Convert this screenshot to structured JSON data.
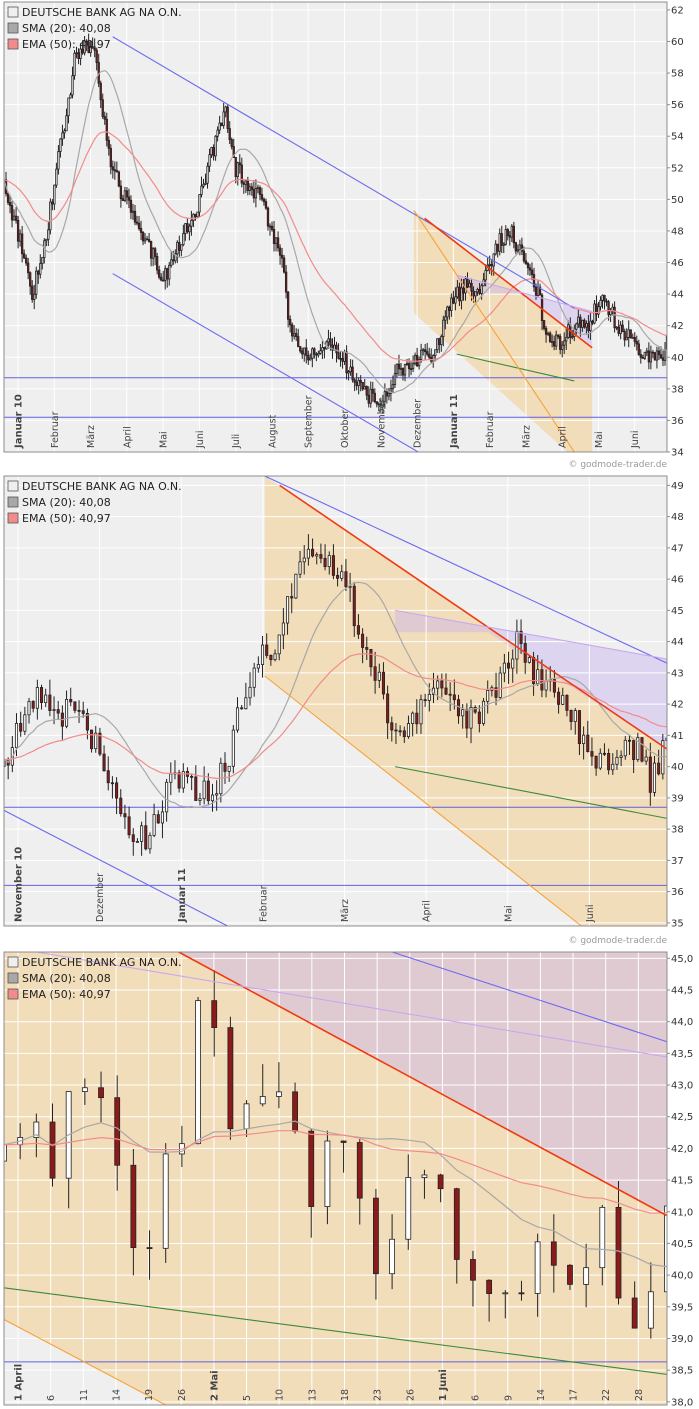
{
  "credit": "© godmode-trader.de",
  "colors": {
    "plot_bg": "#efefef",
    "grid": "#ffffff",
    "frame": "#8c8c8c",
    "candle_up": "#ffffff",
    "candle_down": "#8b1a1a",
    "wick": "#222222",
    "sma": "#a8a8a8",
    "ema": "#f28b8b",
    "trend_blue": "#6b6bf0",
    "trend_red": "#f03a10",
    "trend_green": "#3a8a3a",
    "trend_orange": "#f6a23a",
    "trend_violet": "#c8a8f0",
    "support_line": "#6060e0",
    "zone_orange": "#f7c87a",
    "zone_violet": "#c8b4f0"
  },
  "legend": {
    "title": "DEUTSCHE BANK AG NA O.N.",
    "sma": "SMA (20): 40,08",
    "ema": "EMA (50): 40,97"
  },
  "chart_data": [
    {
      "type": "candlestick",
      "title": "DEUTSCHE BANK AG NA O.N.",
      "legend": [
        "DEUTSCHE BANK AG NA O.N.",
        "SMA (20): 40,08",
        "EMA (50): 40,97"
      ],
      "x_tick_labels": [
        "Januar 10",
        "Februar",
        "März",
        "April",
        "Mai",
        "Juni",
        "Juli",
        "August",
        "September",
        "Oktober",
        "November",
        "Dezember",
        "Januar 11",
        "Februar",
        "März",
        "April",
        "Mai",
        "Juni"
      ],
      "y_tick_labels": [
        "34",
        "36",
        "38",
        "40",
        "42",
        "44",
        "46",
        "48",
        "50",
        "52",
        "54",
        "56",
        "58",
        "60",
        "62"
      ],
      "ylim": [
        34,
        62.5
      ],
      "horizontal_lines": [
        38.7,
        36.2
      ],
      "close_path": [
        [
          0,
          51
        ],
        [
          0.05,
          47
        ],
        [
          0.08,
          44
        ],
        [
          0.12,
          48
        ],
        [
          0.2,
          59
        ],
        [
          0.25,
          60
        ],
        [
          0.3,
          52
        ],
        [
          0.38,
          48
        ],
        [
          0.45,
          45
        ],
        [
          0.55,
          50
        ],
        [
          0.62,
          56
        ],
        [
          0.65,
          52
        ],
        [
          0.72,
          50
        ],
        [
          0.78,
          46
        ],
        [
          0.8,
          42
        ],
        [
          0.85,
          40
        ],
        [
          0.9,
          41
        ],
        [
          0.95,
          40
        ],
        [
          1.0,
          38
        ],
        [
          1.05,
          37
        ],
        [
          1.1,
          39
        ],
        [
          1.15,
          40
        ],
        [
          1.2,
          40
        ],
        [
          1.25,
          43
        ],
        [
          1.3,
          45
        ],
        [
          1.33,
          44
        ],
        [
          1.38,
          47
        ],
        [
          1.42,
          48
        ],
        [
          1.46,
          46
        ],
        [
          1.5,
          44
        ],
        [
          1.52,
          41
        ],
        [
          1.56,
          41
        ],
        [
          1.6,
          42
        ],
        [
          1.64,
          42
        ],
        [
          1.68,
          44
        ],
        [
          1.72,
          42
        ],
        [
          1.76,
          41
        ],
        [
          1.8,
          40
        ],
        [
          1.84,
          40
        ],
        [
          1.86,
          40.8
        ]
      ],
      "trendlines": [
        {
          "color": "trend_blue",
          "from": [
            0.305,
            60.3
          ],
          "to": [
            1.6,
            43.1
          ]
        },
        {
          "color": "trend_blue",
          "from": [
            0.305,
            45.3
          ],
          "to": [
            1.2,
            33.5
          ]
        },
        {
          "color": "trend_red",
          "from": [
            1.18,
            48.8
          ],
          "to": [
            1.65,
            40.6
          ]
        },
        {
          "color": "trend_green",
          "from": [
            1.27,
            40.2
          ],
          "to": [
            1.6,
            38.5
          ]
        },
        {
          "color": "trend_orange",
          "from": [
            1.15,
            49.3
          ],
          "to": [
            1.6,
            34.0
          ]
        },
        {
          "color": "trend_violet",
          "from": [
            1.27,
            45.2
          ],
          "to": [
            1.65,
            42.9
          ]
        }
      ],
      "zones": [
        {
          "color": "zone_orange",
          "poly": [
            [
              1.15,
              49.3
            ],
            [
              1.65,
              40.6
            ],
            [
              1.65,
              34.0
            ],
            [
              1.58,
              34.0
            ],
            [
              1.15,
              42.8
            ]
          ]
        },
        {
          "color": "zone_violet",
          "poly": [
            [
              1.27,
              45.2
            ],
            [
              1.65,
              42.9
            ],
            [
              1.65,
              40.6
            ],
            [
              1.45,
              44.0
            ],
            [
              1.27,
              44.0
            ]
          ]
        }
      ]
    },
    {
      "type": "candlestick",
      "title": "DEUTSCHE BANK AG NA O.N.",
      "legend": [
        "DEUTSCHE BANK AG NA O.N.",
        "SMA (20): 40,08",
        "EMA (50): 40,97"
      ],
      "x_tick_labels": [
        "November 10",
        "Dezember",
        "Januar 11",
        "Februar",
        "März",
        "April",
        "Mai",
        "Juni"
      ],
      "y_tick_labels": [
        "35",
        "36",
        "37",
        "38",
        "39",
        "40",
        "41",
        "42",
        "43",
        "44",
        "45",
        "46",
        "47",
        "48",
        "49"
      ],
      "ylim": [
        34.9,
        49.3
      ],
      "horizontal_lines": [
        38.7,
        36.2
      ],
      "close_path": [
        [
          0,
          40
        ],
        [
          0.05,
          41.5
        ],
        [
          0.1,
          42.3
        ],
        [
          0.15,
          41.5
        ],
        [
          0.2,
          42
        ],
        [
          0.25,
          40.5
        ],
        [
          0.3,
          39.5
        ],
        [
          0.35,
          37.5
        ],
        [
          0.4,
          38
        ],
        [
          0.45,
          39.5
        ],
        [
          0.5,
          39.3
        ],
        [
          0.55,
          39.1
        ],
        [
          0.6,
          40.2
        ],
        [
          0.65,
          42.5
        ],
        [
          0.7,
          44
        ],
        [
          0.73,
          43.5
        ],
        [
          0.76,
          45
        ],
        [
          0.8,
          47
        ],
        [
          0.84,
          46.5
        ],
        [
          0.88,
          46.5
        ],
        [
          0.92,
          45.8
        ],
        [
          0.95,
          44.5
        ],
        [
          1.0,
          43
        ],
        [
          1.05,
          41
        ],
        [
          1.1,
          41.3
        ],
        [
          1.15,
          42.5
        ],
        [
          1.2,
          42
        ],
        [
          1.25,
          41.5
        ],
        [
          1.3,
          42
        ],
        [
          1.35,
          43
        ],
        [
          1.38,
          44.2
        ],
        [
          1.42,
          43
        ],
        [
          1.46,
          42.8
        ],
        [
          1.5,
          42
        ],
        [
          1.55,
          41
        ],
        [
          1.6,
          40
        ],
        [
          1.65,
          40.5
        ],
        [
          1.7,
          40.7
        ],
        [
          1.74,
          39.5
        ],
        [
          1.78,
          40.8
        ]
      ],
      "trendlines": [
        {
          "color": "trend_blue",
          "from": [
            0.7,
            49.3
          ],
          "to": [
            1.8,
            43.2
          ]
        },
        {
          "color": "trend_blue",
          "from": [
            0.0,
            38.6
          ],
          "to": [
            0.6,
            34.9
          ]
        },
        {
          "color": "trend_red",
          "from": [
            0.74,
            49.0
          ],
          "to": [
            1.8,
            40.4
          ]
        },
        {
          "color": "trend_green",
          "from": [
            1.05,
            40.0
          ],
          "to": [
            1.8,
            38.3
          ]
        },
        {
          "color": "trend_orange",
          "from": [
            0.7,
            42.9
          ],
          "to": [
            1.55,
            34.9
          ]
        },
        {
          "color": "trend_violet",
          "from": [
            1.05,
            45.0
          ],
          "to": [
            1.8,
            43.4
          ]
        }
      ],
      "zones": [
        {
          "color": "zone_orange",
          "poly": [
            [
              0.7,
              49.3
            ],
            [
              1.8,
              40.4
            ],
            [
              1.8,
              34.9
            ],
            [
              1.55,
              34.9
            ],
            [
              0.7,
              42.9
            ]
          ]
        },
        {
          "color": "zone_violet",
          "poly": [
            [
              1.05,
              45.0
            ],
            [
              1.8,
              43.4
            ],
            [
              1.8,
              40.4
            ],
            [
              1.3,
              44.3
            ],
            [
              1.05,
              44.3
            ]
          ]
        }
      ]
    },
    {
      "type": "candlestick",
      "title": "DEUTSCHE BANK AG NA O.N.",
      "legend": [
        "DEUTSCHE BANK AG NA O.N.",
        "SMA (20): 40,08",
        "EMA (50): 40,97"
      ],
      "x_tick_labels": [
        "1 April",
        "6",
        "11",
        "14",
        "19",
        "26",
        "2 Mai",
        "5",
        "10",
        "13",
        "18",
        "23",
        "26",
        "1 Juni",
        "6",
        "9",
        "14",
        "17",
        "22",
        "28"
      ],
      "y_tick_labels": [
        "38,0",
        "38,5",
        "39,0",
        "39,5",
        "40,0",
        "40,5",
        "41,0",
        "41,5",
        "42,0",
        "42,5",
        "43,0",
        "43,5",
        "44,0",
        "44,5",
        "45,0"
      ],
      "ylim": [
        37.95,
        45.1
      ],
      "horizontal_lines": [
        38.63
      ],
      "close_path": [
        [
          0,
          41.8
        ],
        [
          0.05,
          42.6
        ],
        [
          0.1,
          42.3
        ],
        [
          0.15,
          41.7
        ],
        [
          0.2,
          42.9
        ],
        [
          0.25,
          43.0
        ],
        [
          0.3,
          42.5
        ],
        [
          0.35,
          41.5
        ],
        [
          0.4,
          40.0
        ],
        [
          0.45,
          40.6
        ],
        [
          0.5,
          41.5
        ],
        [
          0.55,
          42.5
        ],
        [
          0.6,
          44.3
        ],
        [
          0.65,
          43.5
        ],
        [
          0.7,
          42.5
        ],
        [
          0.75,
          42.3
        ],
        [
          0.8,
          42.6
        ],
        [
          0.85,
          42.8
        ],
        [
          0.9,
          42.4
        ],
        [
          0.95,
          41.5
        ],
        [
          1.0,
          42.4
        ],
        [
          1.05,
          42.5
        ],
        [
          1.1,
          40.8
        ],
        [
          1.15,
          40.3
        ],
        [
          1.2,
          40.7
        ],
        [
          1.25,
          41.4
        ],
        [
          1.3,
          41.2
        ],
        [
          1.35,
          41.7
        ],
        [
          1.4,
          40.7
        ],
        [
          1.45,
          40.3
        ],
        [
          1.5,
          39.8
        ],
        [
          1.55,
          39.5
        ],
        [
          1.6,
          39.7
        ],
        [
          1.65,
          40.2
        ],
        [
          1.7,
          40.0
        ],
        [
          1.75,
          39.6
        ],
        [
          1.8,
          40.5
        ],
        [
          1.85,
          41.3
        ],
        [
          1.9,
          39.3
        ],
        [
          1.95,
          39.2
        ],
        [
          2.0,
          39.5
        ],
        [
          2.05,
          40.7
        ]
      ],
      "trendlines": [
        {
          "color": "trend_red",
          "from": [
            0.54,
            45.1
          ],
          "to": [
            2.1,
            40.8
          ]
        },
        {
          "color": "trend_blue",
          "from": [
            1.2,
            45.1
          ],
          "to": [
            2.1,
            43.6
          ]
        },
        {
          "color": "trend_violet",
          "from": [
            0.1,
            45.1
          ],
          "to": [
            2.1,
            43.4
          ]
        },
        {
          "color": "trend_green",
          "from": [
            0.0,
            39.8
          ],
          "to": [
            2.1,
            38.4
          ]
        },
        {
          "color": "trend_orange",
          "from": [
            0.0,
            39.3
          ],
          "to": [
            0.5,
            37.95
          ]
        }
      ],
      "zones": [
        {
          "color": "zone_orange",
          "poly": [
            [
              0.0,
              45.1
            ],
            [
              2.1,
              45.1
            ],
            [
              2.1,
              37.95
            ],
            [
              0.5,
              37.95
            ],
            [
              0.0,
              39.3
            ]
          ]
        },
        {
          "color": "zone_violet",
          "poly": [
            [
              0.1,
              45.1
            ],
            [
              2.1,
              45.1
            ],
            [
              2.1,
              40.8
            ],
            [
              0.54,
              45.1
            ]
          ]
        }
      ]
    }
  ]
}
